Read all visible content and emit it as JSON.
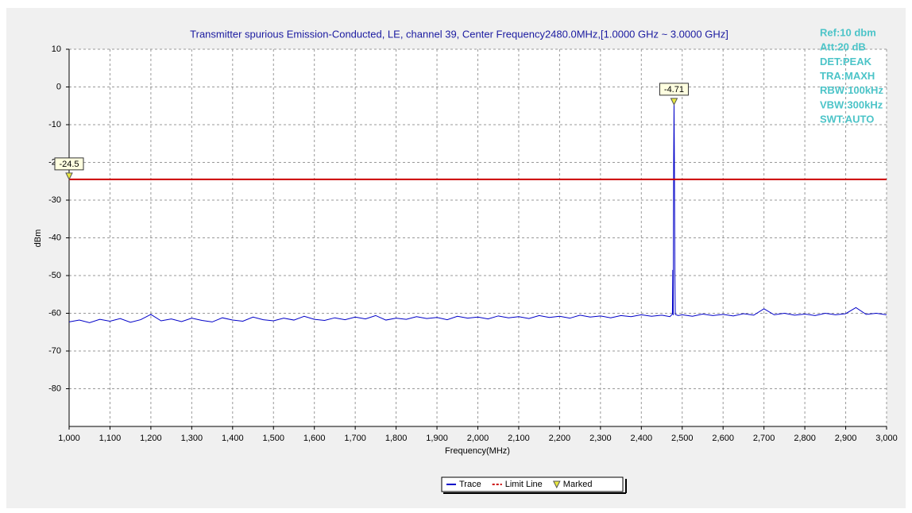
{
  "chart_data": {
    "type": "line",
    "title": "Transmitter spurious Emission-Conducted, LE, channel 39, Center Frequency2480.0MHz,[1.0000 GHz ~ 3.0000 GHz]",
    "x_label": "Frequency(MHz)",
    "y_label": "dBm",
    "xlim": [
      1000,
      3000
    ],
    "ylim": [
      -90,
      10
    ],
    "xticks": [
      {
        "value": 1000,
        "label": "1,000"
      },
      {
        "value": 1100,
        "label": "1,100"
      },
      {
        "value": 1200,
        "label": "1,200"
      },
      {
        "value": 1300,
        "label": "1,300"
      },
      {
        "value": 1400,
        "label": "1,400"
      },
      {
        "value": 1500,
        "label": "1,500"
      },
      {
        "value": 1600,
        "label": "1,600"
      },
      {
        "value": 1700,
        "label": "1,700"
      },
      {
        "value": 1800,
        "label": "1,800"
      },
      {
        "value": 1900,
        "label": "1,900"
      },
      {
        "value": 2000,
        "label": "2,000"
      },
      {
        "value": 2100,
        "label": "2,100"
      },
      {
        "value": 2200,
        "label": "2,200"
      },
      {
        "value": 2300,
        "label": "2,300"
      },
      {
        "value": 2400,
        "label": "2,400"
      },
      {
        "value": 2500,
        "label": "2,500"
      },
      {
        "value": 2600,
        "label": "2,600"
      },
      {
        "value": 2700,
        "label": "2,700"
      },
      {
        "value": 2800,
        "label": "2,800"
      },
      {
        "value": 2900,
        "label": "2,900"
      },
      {
        "value": 3000,
        "label": "3,000"
      }
    ],
    "yticks": [
      -80,
      -70,
      -60,
      -50,
      -40,
      -30,
      -20,
      -10,
      0,
      10
    ],
    "grid": true,
    "series": [
      {
        "name": "Trace",
        "color": "#0000c8",
        "x": [
          1000,
          1025,
          1050,
          1075,
          1100,
          1125,
          1150,
          1175,
          1200,
          1225,
          1250,
          1275,
          1300,
          1325,
          1350,
          1375,
          1400,
          1425,
          1450,
          1475,
          1500,
          1525,
          1550,
          1575,
          1600,
          1625,
          1650,
          1675,
          1700,
          1725,
          1750,
          1775,
          1800,
          1825,
          1850,
          1875,
          1900,
          1925,
          1950,
          1975,
          2000,
          2025,
          2050,
          2075,
          2100,
          2125,
          2150,
          2175,
          2200,
          2225,
          2250,
          2275,
          2300,
          2325,
          2350,
          2375,
          2400,
          2425,
          2450,
          2470,
          2476,
          2477,
          2478,
          2479,
          2480,
          2481,
          2482,
          2483,
          2490,
          2500,
          2525,
          2550,
          2575,
          2600,
          2625,
          2650,
          2675,
          2700,
          2725,
          2750,
          2775,
          2800,
          2825,
          2850,
          2875,
          2900,
          2925,
          2950,
          2975,
          3000
        ],
        "values": [
          -62.3,
          -61.8,
          -62.5,
          -61.6,
          -62.1,
          -61.4,
          -62.4,
          -61.7,
          -60.3,
          -62.0,
          -61.5,
          -62.2,
          -61.3,
          -61.9,
          -62.3,
          -61.2,
          -61.8,
          -62.1,
          -61.0,
          -61.7,
          -62.0,
          -61.3,
          -61.8,
          -60.8,
          -61.6,
          -61.9,
          -61.2,
          -61.7,
          -61.0,
          -61.5,
          -60.6,
          -61.8,
          -61.3,
          -61.6,
          -60.9,
          -61.4,
          -61.1,
          -61.7,
          -60.8,
          -61.3,
          -61.0,
          -61.5,
          -60.7,
          -61.2,
          -60.9,
          -61.4,
          -60.6,
          -61.1,
          -60.8,
          -61.3,
          -60.5,
          -61.0,
          -60.7,
          -61.2,
          -60.6,
          -60.9,
          -60.4,
          -60.8,
          -60.5,
          -60.9,
          -60.2,
          -48.5,
          -60.5,
          -21.0,
          -4.71,
          -22.0,
          -48.0,
          -60.3,
          -60.6,
          -60.4,
          -60.8,
          -60.2,
          -60.6,
          -60.3,
          -60.7,
          -60.1,
          -60.5,
          -58.8,
          -60.4,
          -60.0,
          -60.5,
          -60.2,
          -60.6,
          -60.0,
          -60.4,
          -60.1,
          -58.5,
          -60.3,
          -60.0,
          -60.4
        ]
      },
      {
        "name": "Limit Line",
        "color": "#cc0000",
        "x": [
          1000,
          3000
        ],
        "values": [
          -24.5,
          -24.5
        ]
      }
    ],
    "markers_name": "Marked",
    "marker_color": "#e8e840",
    "markers": [
      {
        "x": 1000,
        "y": -24.5
      },
      {
        "x": 2480,
        "y": -4.71
      }
    ],
    "info": [
      "Ref:10 dbm",
      "Att:20 dB",
      "DET:PEAK",
      "TRA:MAXH",
      "RBW:100kHz",
      "VBW:300kHz",
      "SWT:AUTO"
    ]
  }
}
